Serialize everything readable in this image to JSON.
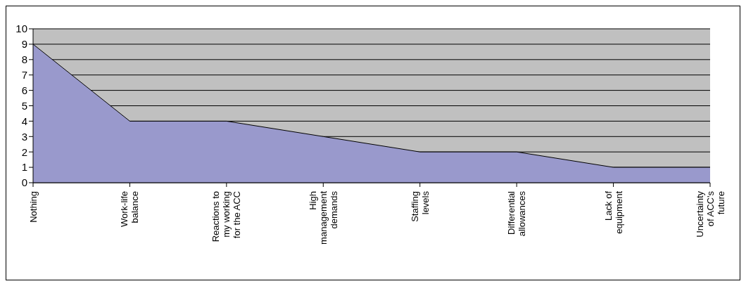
{
  "chart_data": {
    "type": "area",
    "categories": [
      "Nothing",
      "Work-life balance",
      "Reactions to my working for the ACC",
      "High management demands",
      "Staffing levels",
      "Differential allowances",
      "Lack of equipment",
      "Uncertainty of ACC's future"
    ],
    "values": [
      9,
      4,
      4,
      3,
      2,
      2,
      1,
      1
    ],
    "color": "#9999cc",
    "ylim": [
      0,
      10
    ],
    "yticks": [
      0,
      1,
      2,
      3,
      4,
      5,
      6,
      7,
      8,
      9,
      10
    ],
    "grid": "y"
  }
}
